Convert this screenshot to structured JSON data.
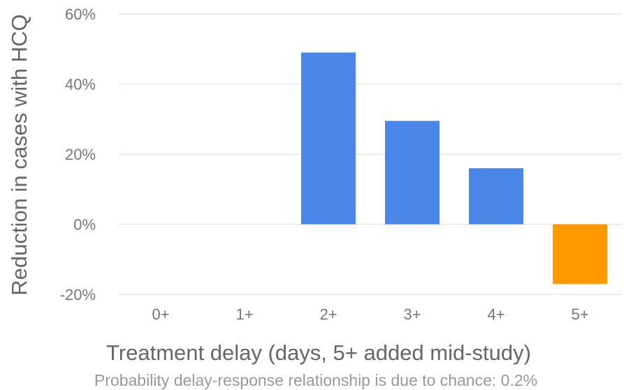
{
  "chart_data": {
    "type": "bar",
    "categories": [
      "0+",
      "1+",
      "2+",
      "3+",
      "4+",
      "5+"
    ],
    "values": [
      0,
      0,
      49,
      29.5,
      16,
      -17
    ],
    "bar_colors": [
      "#4a86e8",
      "#4a86e8",
      "#4a86e8",
      "#4a86e8",
      "#4a86e8",
      "#ff9900"
    ],
    "ylim": [
      -20,
      60
    ],
    "yticks": [
      -20,
      0,
      20,
      40,
      60
    ],
    "ytick_labels": [
      "-20%",
      "0%",
      "20%",
      "40%",
      "60%"
    ],
    "xlabel": "Treatment delay (days, 5+ added mid-study)",
    "ylabel": "Reduction in cases with HCQ",
    "caption": "Probability delay-response relationship is due to chance: 0.2%",
    "grid": true,
    "legend": "none"
  }
}
